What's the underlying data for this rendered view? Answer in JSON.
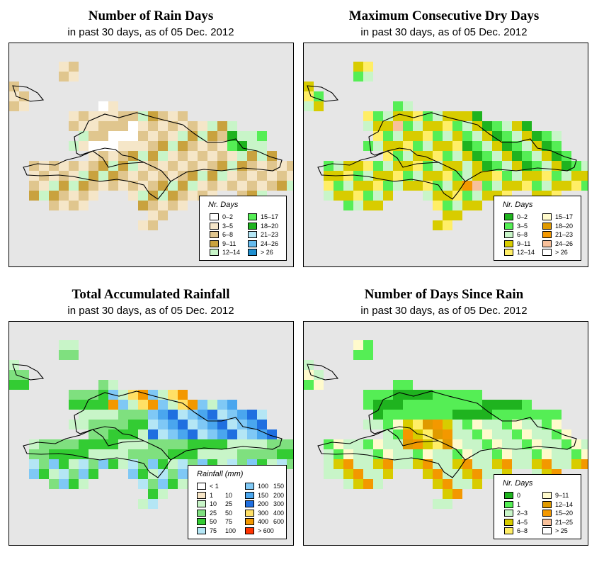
{
  "panels": [
    {
      "id": "rain-days",
      "title": "Number of Rain Days",
      "subtitle": "in past 30 days, as of  05 Dec. 2012",
      "legend": {
        "title": "Nr. Days",
        "items": [
          {
            "label": "0–2",
            "color": "#ffffff"
          },
          {
            "label": "3–5",
            "color": "#f5e6c8"
          },
          {
            "label": "6–8",
            "color": "#e0c68e"
          },
          {
            "label": "9–11",
            "color": "#c9a23e"
          },
          {
            "label": "12–14",
            "color": "#c8f5c8"
          },
          {
            "label": "15–17",
            "color": "#55ee55"
          },
          {
            "label": "18–20",
            "color": "#1fb31f"
          },
          {
            "label": "21–23",
            "color": "#b4e6f5"
          },
          {
            "label": "24–26",
            "color": "#66bbee"
          },
          {
            "label": "> 26",
            "color": "#1f8fd0"
          }
        ]
      }
    },
    {
      "id": "dry-days",
      "title": "Maximum Consecutive Dry Days",
      "subtitle": "in past 30 days, as of  05 Dec. 2012",
      "legend": {
        "title": "Nr. Days",
        "items": [
          {
            "label": "0–2",
            "color": "#1fb31f"
          },
          {
            "label": "3–5",
            "color": "#55ee55"
          },
          {
            "label": "6–8",
            "color": "#c8f5c8"
          },
          {
            "label": "9–11",
            "color": "#d8cc00"
          },
          {
            "label": "12–14",
            "color": "#ffee66"
          },
          {
            "label": "15–17",
            "color": "#fffacc"
          },
          {
            "label": "18–20",
            "color": "#e09a00"
          },
          {
            "label": "21–23",
            "color": "#f39800"
          },
          {
            "label": "24–26",
            "color": "#f8c09a"
          },
          {
            "label": "> 26",
            "color": "#ffffff"
          }
        ]
      }
    },
    {
      "id": "rainfall",
      "title": "Total Accumulated Rainfall",
      "subtitle": "in past 30 days, as of  05 Dec. 2012",
      "legend": {
        "title": "Rainfall (mm)",
        "items": [
          {
            "a": "< 1",
            "b": "",
            "color": "#ffffff"
          },
          {
            "a": "1",
            "b": "10",
            "color": "#f7e6c8"
          },
          {
            "a": "10",
            "b": "25",
            "color": "#c8f5c8"
          },
          {
            "a": "25",
            "b": "50",
            "color": "#7fe07f"
          },
          {
            "a": "50",
            "b": "75",
            "color": "#33cc33"
          },
          {
            "a": "75",
            "b": "100",
            "color": "#b4e6f5"
          },
          {
            "a": "100",
            "b": "150",
            "color": "#7fc8f5"
          },
          {
            "a": "150",
            "b": "200",
            "color": "#4aa6ee"
          },
          {
            "a": "200",
            "b": "300",
            "color": "#1f6fe0"
          },
          {
            "a": "300",
            "b": "400",
            "color": "#ffe066"
          },
          {
            "a": "400",
            "b": "600",
            "color": "#f39800"
          },
          {
            "a": "> 600",
            "b": "",
            "color": "#ff3300"
          }
        ]
      }
    },
    {
      "id": "days-since",
      "title": "Number of Days Since Rain",
      "subtitle": "in past 30 days, as of  05 Dec. 2012",
      "legend": {
        "title": "Nr. Days",
        "items": [
          {
            "label": "0",
            "color": "#1fb31f"
          },
          {
            "label": "1",
            "color": "#55ee55"
          },
          {
            "label": "2–3",
            "color": "#c8f5c8"
          },
          {
            "label": "4–5",
            "color": "#d8cc00"
          },
          {
            "label": "6–8",
            "color": "#ffee66"
          },
          {
            "label": "9–11",
            "color": "#fffacc"
          },
          {
            "label": "12–14",
            "color": "#e09a00"
          },
          {
            "label": "15–20",
            "color": "#f39800"
          },
          {
            "label": "21–25",
            "color": "#f8c09a"
          },
          {
            "label": "> 25",
            "color": "#ffffff"
          }
        ]
      }
    }
  ],
  "colors": {
    "map_bg": "#e6e6e6",
    "outline": "#000000"
  }
}
